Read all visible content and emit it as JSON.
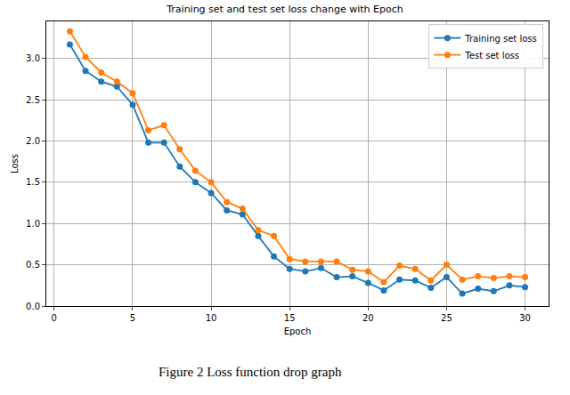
{
  "chart_data": {
    "type": "line",
    "title": "Training set and test set loss change with Epoch",
    "caption": "Figure 2 Loss function drop graph",
    "x_label": "Epoch",
    "y_label": "Loss",
    "x": [
      1,
      2,
      3,
      4,
      5,
      6,
      7,
      8,
      9,
      10,
      11,
      12,
      13,
      14,
      15,
      16,
      17,
      18,
      19,
      20,
      21,
      22,
      23,
      24,
      25,
      26,
      27,
      28,
      29,
      30
    ],
    "series": [
      {
        "name": "Training set loss",
        "color": "#1f77b4",
        "marker": "circle",
        "line_style": "solid",
        "values": [
          3.17,
          2.85,
          2.72,
          2.66,
          2.44,
          1.98,
          1.98,
          1.69,
          1.5,
          1.37,
          1.16,
          1.11,
          0.85,
          0.6,
          0.45,
          0.42,
          0.46,
          0.35,
          0.36,
          0.28,
          0.19,
          0.32,
          0.31,
          0.22,
          0.35,
          0.15,
          0.21,
          0.18,
          0.25,
          0.23
        ]
      },
      {
        "name": "Test set loss",
        "color": "#ff7f0e",
        "marker": "circle",
        "line_style": "solid",
        "values": [
          3.33,
          3.02,
          2.83,
          2.72,
          2.58,
          2.13,
          2.19,
          1.9,
          1.64,
          1.5,
          1.26,
          1.18,
          0.92,
          0.85,
          0.57,
          0.54,
          0.54,
          0.54,
          0.44,
          0.42,
          0.29,
          0.49,
          0.45,
          0.31,
          0.5,
          0.32,
          0.36,
          0.34,
          0.36,
          0.35
        ]
      }
    ],
    "xlim": [
      -0.5,
      31.5
    ],
    "xticks": [
      0,
      5,
      10,
      15,
      20,
      25,
      30
    ],
    "ylim": [
      0,
      3.45
    ],
    "yticks": [
      {
        "value": 0,
        "label": "0.0"
      },
      {
        "value": 0.5,
        "label": "0.5"
      },
      {
        "value": 1,
        "label": "1.0"
      },
      {
        "value": 1.5,
        "label": "1.5"
      },
      {
        "value": 2,
        "label": "2.0"
      },
      {
        "value": 2.5,
        "label": "2.5"
      },
      {
        "value": 3,
        "label": "3.0"
      }
    ],
    "grid": true,
    "legend": "upper right"
  }
}
